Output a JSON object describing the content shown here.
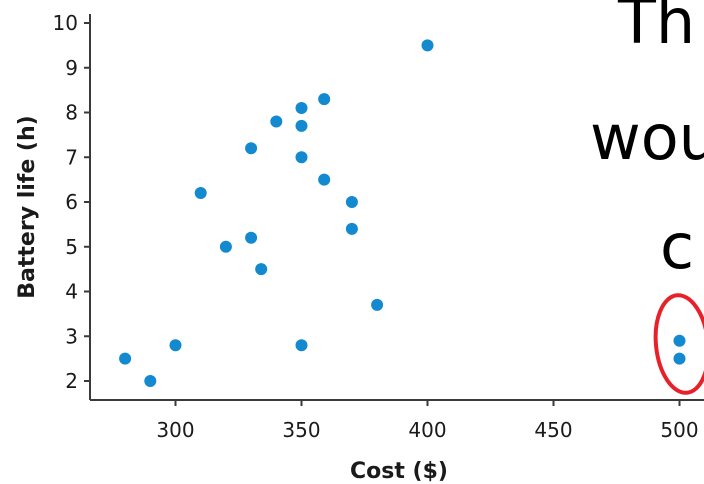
{
  "chart_data": {
    "type": "scatter",
    "xlabel": "Cost ($)",
    "ylabel": "Battery life (h)",
    "xlim": [
      270,
      510
    ],
    "ylim": [
      1.8,
      10.2
    ],
    "x_ticks": [
      300,
      350,
      400,
      450,
      500
    ],
    "y_ticks": [
      2,
      3,
      4,
      5,
      6,
      7,
      8,
      9,
      10
    ],
    "grid": false,
    "marker_color": "#1389d0",
    "points": [
      {
        "x": 280,
        "y": 2.5
      },
      {
        "x": 290,
        "y": 2.0
      },
      {
        "x": 300,
        "y": 2.8
      },
      {
        "x": 310,
        "y": 6.2
      },
      {
        "x": 320,
        "y": 5.0
      },
      {
        "x": 330,
        "y": 5.2
      },
      {
        "x": 330,
        "y": 7.2
      },
      {
        "x": 334,
        "y": 4.5
      },
      {
        "x": 340,
        "y": 7.8
      },
      {
        "x": 350,
        "y": 8.1
      },
      {
        "x": 350,
        "y": 7.7
      },
      {
        "x": 350,
        "y": 7.0
      },
      {
        "x": 350,
        "y": 2.8
      },
      {
        "x": 359,
        "y": 8.3
      },
      {
        "x": 359,
        "y": 6.5
      },
      {
        "x": 370,
        "y": 6.0
      },
      {
        "x": 370,
        "y": 5.4
      },
      {
        "x": 380,
        "y": 3.7
      },
      {
        "x": 400,
        "y": 9.5
      },
      {
        "x": 500,
        "y": 2.9
      },
      {
        "x": 500,
        "y": 2.5
      }
    ]
  },
  "annotations": {
    "handwritten_lines": [
      "Th",
      "wou",
      "c"
    ],
    "circle_color": "#e8202a"
  }
}
